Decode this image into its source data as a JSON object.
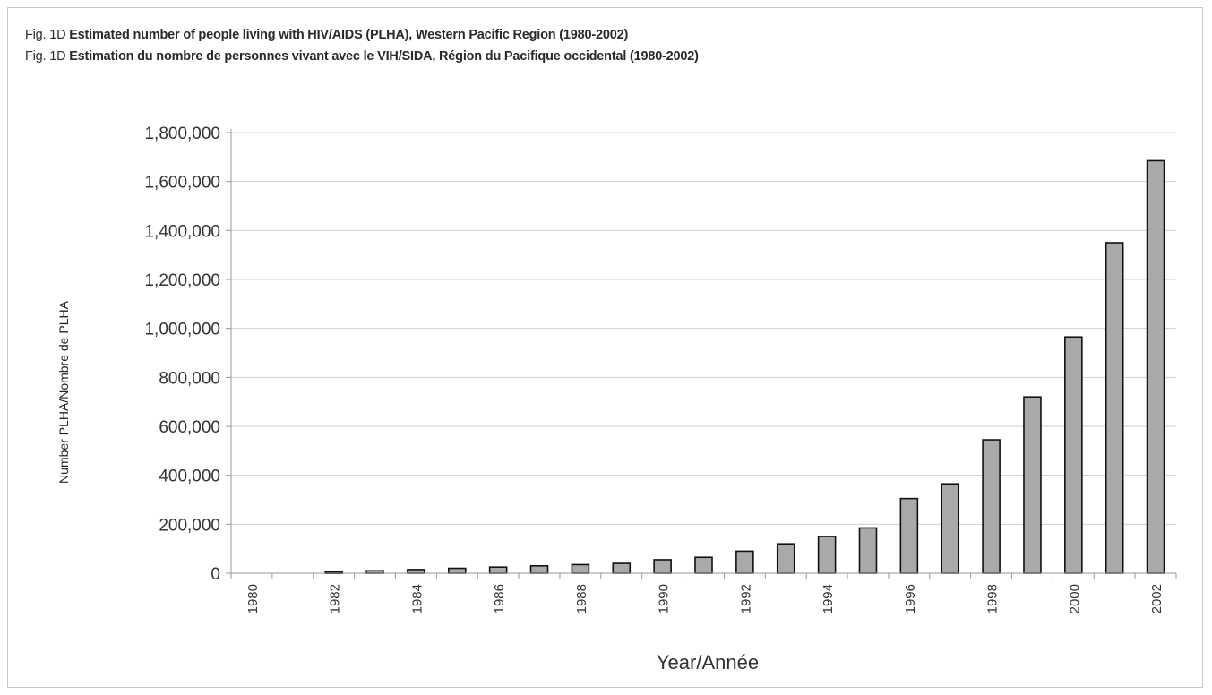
{
  "figure": {
    "title_en_prefix": "Fig. 1D",
    "title_en": "Estimated number of people living with HIV/AIDS (PLHA), Western Pacific Region (1980-2002)",
    "title_fr_prefix": "Fig. 1D",
    "title_fr": "Estimation du nombre de personnes vivant avec le VIH/SIDA, Région du Pacifique occidental (1980-2002)"
  },
  "colors": {
    "bar_fill": "#a9a9a9",
    "bar_stroke": "#111111",
    "grid": "#cfcfcf",
    "axis": "#9a9a9a"
  },
  "chart_data": {
    "type": "bar",
    "xlabel": "Year/Année",
    "ylabel": "Number PLHA/Nombre de PLHA",
    "ylim": [
      0,
      1800000
    ],
    "y_ticks": [
      0,
      200000,
      400000,
      600000,
      800000,
      1000000,
      1200000,
      1400000,
      1600000,
      1800000
    ],
    "y_tick_labels": [
      "0",
      "200,000",
      "400,000",
      "600,000",
      "800,000",
      "1,000,000",
      "1,200,000",
      "1,400,000",
      "1,600,000",
      "1,800,000"
    ],
    "categories": [
      "1980",
      "1981",
      "1982",
      "1983",
      "1984",
      "1985",
      "1986",
      "1987",
      "1988",
      "1989",
      "1990",
      "1991",
      "1992",
      "1993",
      "1994",
      "1995",
      "1996",
      "1997",
      "1998",
      "1999",
      "2000",
      "2001",
      "2002"
    ],
    "x_tick_labels": [
      "1980",
      "",
      "1982",
      "",
      "1984",
      "",
      "1986",
      "",
      "1988",
      "",
      "1990",
      "",
      "1992",
      "",
      "1994",
      "",
      "1996",
      "",
      "1998",
      "",
      "2000",
      "",
      "2002"
    ],
    "values": [
      0,
      0,
      5000,
      10000,
      15000,
      20000,
      25000,
      30000,
      35000,
      40000,
      55000,
      65000,
      90000,
      120000,
      150000,
      185000,
      305000,
      365000,
      545000,
      720000,
      965000,
      1350000,
      1685000
    ],
    "grid": true,
    "legend": "none"
  }
}
